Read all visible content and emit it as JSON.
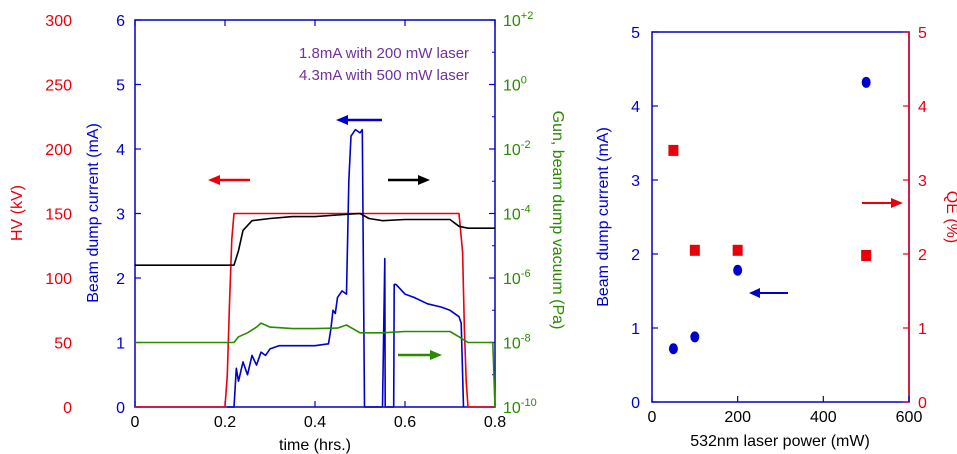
{
  "chart_data": [
    {
      "type": "line",
      "xlabel": "time (hrs.)",
      "xlim": [
        0,
        0.8
      ],
      "x_ticks": [
        "0",
        "0.2",
        "0.4",
        "0.6",
        "0.8"
      ],
      "y_axes": [
        {
          "label": "HV (kV)",
          "color": "#e8000b",
          "side": "left-outer",
          "lim": [
            0,
            300
          ],
          "ticks": [
            "0",
            "50",
            "100",
            "150",
            "200",
            "250",
            "300"
          ]
        },
        {
          "label": "Beam dump current (mA)",
          "color": "#0000cc",
          "side": "left-inner",
          "lim": [
            0,
            6
          ],
          "ticks": [
            "0",
            "1",
            "2",
            "3",
            "4",
            "5",
            "6"
          ]
        },
        {
          "label": "Gun, beam dump vacuum (Pa)",
          "color": "#2a8a00",
          "side": "right",
          "scale": "log",
          "lim": [
            1e-10,
            100
          ],
          "ticks": [
            {
              "base": "10",
              "exp": "-10"
            },
            {
              "base": "10",
              "exp": "-8"
            },
            {
              "base": "10",
              "exp": "-6"
            },
            {
              "base": "10",
              "exp": "-4"
            },
            {
              "base": "10",
              "exp": "-2"
            },
            {
              "base": "10",
              "exp": "0"
            },
            {
              "base": "10",
              "exp": "+2"
            }
          ]
        }
      ],
      "annotations": [
        "1.8mA with 200 mW laser",
        "4.3mA with 500 mW laser"
      ],
      "annotation_color": "#7030a0",
      "series": [
        {
          "axis": "HV",
          "color": "#e8000b",
          "points": [
            [
              0,
              0
            ],
            [
              0.2,
              0
            ],
            [
              0.205,
              25
            ],
            [
              0.21,
              80
            ],
            [
              0.215,
              130
            ],
            [
              0.22,
              150
            ],
            [
              0.72,
              150
            ],
            [
              0.728,
              120
            ],
            [
              0.732,
              60
            ],
            [
              0.736,
              20
            ],
            [
              0.74,
              0
            ],
            [
              0.8,
              0
            ]
          ]
        },
        {
          "axis": "current",
          "color": "#0000cc",
          "points": [
            [
              0.205,
              0
            ],
            [
              0.22,
              0
            ],
            [
              0.225,
              0.6
            ],
            [
              0.23,
              0.4
            ],
            [
              0.24,
              0.7
            ],
            [
              0.25,
              0.5
            ],
            [
              0.26,
              0.8
            ],
            [
              0.27,
              0.65
            ],
            [
              0.28,
              0.85
            ],
            [
              0.29,
              0.8
            ],
            [
              0.3,
              0.9
            ],
            [
              0.32,
              0.95
            ],
            [
              0.35,
              0.95
            ],
            [
              0.38,
              0.95
            ],
            [
              0.4,
              0.95
            ],
            [
              0.43,
              0.98
            ],
            [
              0.435,
              1.2
            ],
            [
              0.44,
              1.5
            ],
            [
              0.445,
              1.45
            ],
            [
              0.45,
              1.7
            ],
            [
              0.46,
              1.8
            ],
            [
              0.47,
              1.75
            ],
            [
              0.475,
              3.5
            ],
            [
              0.48,
              4.2
            ],
            [
              0.49,
              4.3
            ],
            [
              0.5,
              4.25
            ],
            [
              0.505,
              4.3
            ],
            [
              0.51,
              0
            ],
            [
              0.55,
              0
            ],
            [
              0.555,
              2.3
            ],
            [
              0.556,
              0
            ],
            [
              0.575,
              0
            ],
            [
              0.576,
              1.9
            ],
            [
              0.58,
              1.9
            ],
            [
              0.6,
              1.75
            ],
            [
              0.62,
              1.7
            ],
            [
              0.65,
              1.6
            ],
            [
              0.68,
              1.55
            ],
            [
              0.7,
              1.5
            ],
            [
              0.72,
              1.4
            ],
            [
              0.725,
              1.3
            ],
            [
              0.73,
              0
            ]
          ]
        },
        {
          "axis": "vacuum",
          "name": "beam dump",
          "color": "#000000",
          "points": [
            [
              0,
              2.5e-06
            ],
            [
              0.22,
              2.5e-06
            ],
            [
              0.23,
              7e-06
            ],
            [
              0.24,
              3e-05
            ],
            [
              0.26,
              6e-05
            ],
            [
              0.3,
              7e-05
            ],
            [
              0.35,
              8e-05
            ],
            [
              0.4,
              8e-05
            ],
            [
              0.45,
              9e-05
            ],
            [
              0.5,
              0.0001
            ],
            [
              0.52,
              7e-05
            ],
            [
              0.55,
              6e-05
            ],
            [
              0.6,
              6.5e-05
            ],
            [
              0.65,
              6.5e-05
            ],
            [
              0.7,
              6.5e-05
            ],
            [
              0.72,
              4e-05
            ],
            [
              0.74,
              3.5e-05
            ],
            [
              0.8,
              3.5e-05
            ]
          ]
        },
        {
          "axis": "vacuum",
          "name": "gun",
          "color": "#2a8a00",
          "points": [
            [
              0,
              1e-08
            ],
            [
              0.22,
              1e-08
            ],
            [
              0.23,
              1.5e-08
            ],
            [
              0.25,
              2e-08
            ],
            [
              0.27,
              3e-08
            ],
            [
              0.28,
              4e-08
            ],
            [
              0.3,
              3e-08
            ],
            [
              0.35,
              2.7e-08
            ],
            [
              0.4,
              2.7e-08
            ],
            [
              0.45,
              2.8e-08
            ],
            [
              0.47,
              3.5e-08
            ],
            [
              0.5,
              2e-08
            ],
            [
              0.55,
              2e-08
            ],
            [
              0.6,
              2.2e-08
            ],
            [
              0.7,
              2.2e-08
            ],
            [
              0.72,
              1.5e-08
            ],
            [
              0.74,
              1e-08
            ],
            [
              0.795,
              1e-08
            ],
            [
              0.8,
              1e-10
            ]
          ]
        }
      ]
    },
    {
      "type": "scatter",
      "xlabel": "532nm   laser power (mW)",
      "xlim": [
        0,
        600
      ],
      "x_ticks": [
        "0",
        "200",
        "400",
        "600"
      ],
      "y_axes": [
        {
          "label": "Beam dump current (mA)",
          "color": "#0000cc",
          "side": "left",
          "lim": [
            0,
            5
          ],
          "ticks": [
            "0",
            "1",
            "2",
            "3",
            "4",
            "5"
          ]
        },
        {
          "label": "QE (%)",
          "color": "#e8000b",
          "side": "right",
          "lim": [
            0,
            5
          ],
          "ticks": [
            "0",
            "1",
            "2",
            "3",
            "4",
            "5"
          ]
        }
      ],
      "series": [
        {
          "axis": "current",
          "marker": "circle",
          "color": "#0000cc",
          "x": [
            50,
            100,
            200,
            500
          ],
          "y": [
            0.72,
            0.88,
            1.78,
            4.32
          ]
        },
        {
          "axis": "QE",
          "marker": "square",
          "color": "#e8000b",
          "x": [
            50,
            100,
            200,
            500
          ],
          "y": [
            3.4,
            2.05,
            2.05,
            1.98
          ]
        }
      ]
    }
  ]
}
